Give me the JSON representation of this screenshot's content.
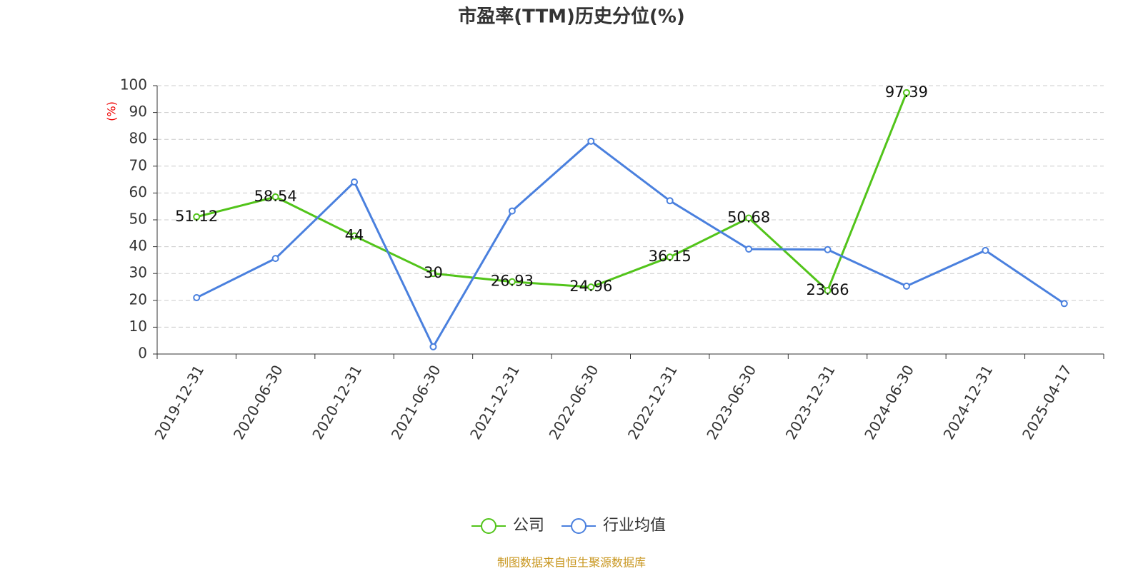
{
  "chart_data": {
    "type": "line",
    "title": "市盈率(TTM)历史分位(%)",
    "y_label": "(%)",
    "source": "制图数据来自恒生聚源数据库",
    "categories": [
      "2019-12-31",
      "2020-06-30",
      "2020-12-31",
      "2021-06-30",
      "2021-12-31",
      "2022-06-30",
      "2022-12-31",
      "2023-06-30",
      "2023-12-31",
      "2024-06-30",
      "2024-12-31",
      "2025-04-17"
    ],
    "series": [
      {
        "name": "公司",
        "color": "#52c41a",
        "values": [
          51.12,
          58.54,
          44,
          30,
          26.93,
          24.96,
          36.15,
          50.68,
          23.66,
          97.39,
          null,
          null
        ]
      },
      {
        "name": "行业均值",
        "color": "#4a80de",
        "values": [
          21,
          35.6,
          64.1,
          2.7,
          53.3,
          79.3,
          57.1,
          39.1,
          38.9,
          25.3,
          38.6,
          18.8
        ]
      }
    ],
    "ylim": [
      0,
      100
    ],
    "yticks": [
      0,
      10,
      20,
      30,
      40,
      50,
      60,
      70,
      80,
      90,
      100
    ],
    "grid": true
  }
}
